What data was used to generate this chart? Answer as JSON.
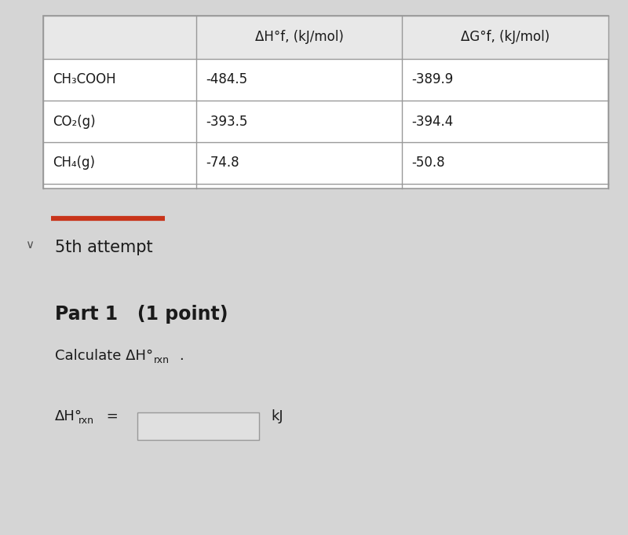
{
  "bg_color": "#d5d5d5",
  "table_bg": "#ffffff",
  "table_header_bg": "#e8e8e8",
  "columns_header": [
    "ΔH°f, (kJ/mol)",
    "ΔG°f, (kJ/mol)"
  ],
  "rows": [
    [
      "CH₃COOH",
      "-484.5",
      "-389.9"
    ],
    [
      "CO₂(g)",
      "-393.5",
      "-394.4"
    ],
    [
      "CH₄(g)",
      "-74.8",
      "-50.8"
    ]
  ],
  "divider_color": "#c8341a",
  "text_color": "#1a1a1a",
  "border_color": "#999999",
  "attempt_text": "5th attempt",
  "part_text": "Part 1   (1 point)",
  "calc_text_1": "Calculate ΔH°",
  "calc_text_2": "rxn",
  "calc_text_3": ".",
  "eq_text_1": "ΔH°",
  "eq_text_2": "rxn",
  "eq_text_3": " =",
  "kj_text": "kJ",
  "chevron": "∨"
}
